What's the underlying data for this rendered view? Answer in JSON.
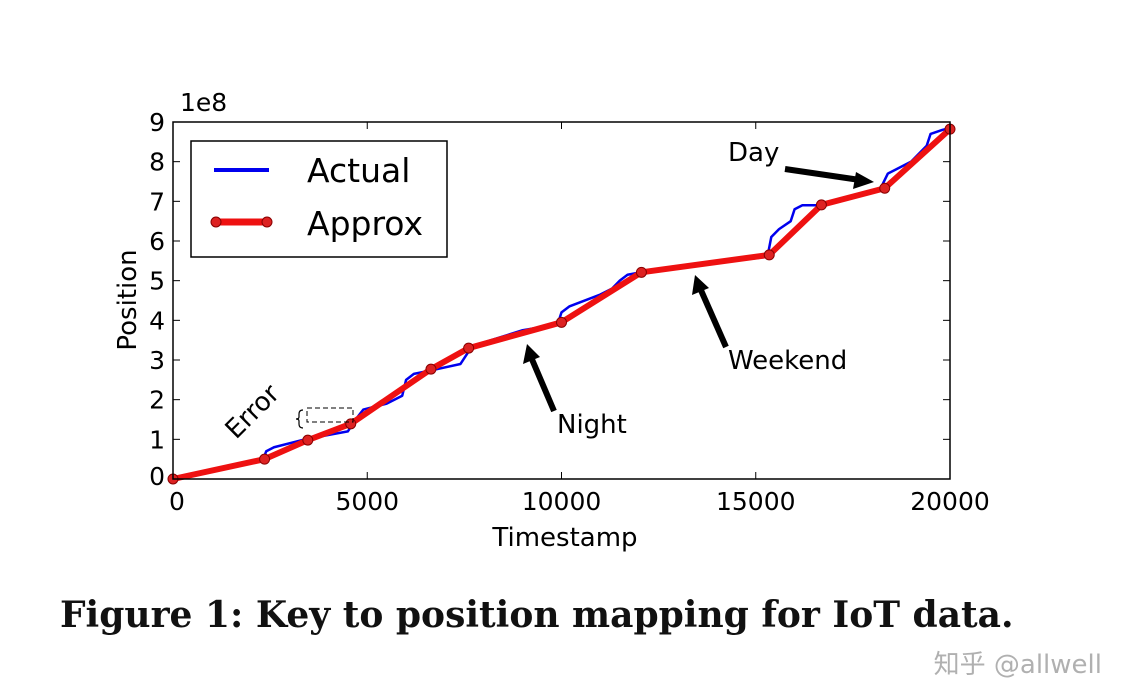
{
  "chart_data": {
    "type": "line",
    "title": "",
    "xlabel": "Timestamp",
    "ylabel": "Position",
    "y_scale_label": "1e8",
    "xlim": [
      0,
      20000
    ],
    "ylim": [
      0,
      9
    ],
    "x_ticks": [
      "0",
      "5000",
      "10000",
      "15000",
      "20000"
    ],
    "x_tick_values": [
      0,
      5000,
      10000,
      15000,
      20000
    ],
    "y_ticks": [
      "0",
      "1",
      "2",
      "3",
      "4",
      "5",
      "6",
      "7",
      "8",
      "9"
    ],
    "y_tick_values": [
      0,
      1,
      2,
      3,
      4,
      5,
      6,
      7,
      8,
      9
    ],
    "grid": false,
    "legend": {
      "placement": "top-left",
      "entries": [
        "Actual",
        "Approx"
      ]
    },
    "colors": {
      "actual": "#0000ee",
      "approx": "#ee1111",
      "marker": "#dd2222"
    },
    "series": [
      {
        "name": "Actual",
        "x": [
          0,
          2300,
          2400,
          2600,
          3400,
          4500,
          4700,
          4900,
          5500,
          5900,
          6000,
          6200,
          6700,
          7400,
          7600,
          7700,
          9000,
          9900,
          10000,
          10200,
          11000,
          11300,
          11500,
          11700,
          12100,
          15300,
          15400,
          15600,
          15900,
          16000,
          16200,
          16700,
          18200,
          18400,
          18600,
          19000,
          19400,
          19500,
          19800,
          20000
        ],
        "y": [
          0,
          0.45,
          0.7,
          0.8,
          1.0,
          1.2,
          1.5,
          1.75,
          1.9,
          2.1,
          2.5,
          2.65,
          2.75,
          2.9,
          3.2,
          3.35,
          3.75,
          3.9,
          4.2,
          4.35,
          4.65,
          4.8,
          5.0,
          5.15,
          5.22,
          5.6,
          6.1,
          6.3,
          6.5,
          6.8,
          6.9,
          6.9,
          7.3,
          7.7,
          7.8,
          8.0,
          8.4,
          8.7,
          8.8,
          8.85
        ]
      },
      {
        "name": "Approx",
        "x": [
          0,
          2357,
          3470,
          4575,
          6640,
          7610,
          10000,
          12057,
          15347,
          16690,
          18320,
          20000
        ],
        "y": [
          0,
          0.5,
          0.98,
          1.39,
          2.77,
          3.3,
          3.95,
          5.21,
          5.65,
          6.91,
          7.33,
          8.82
        ]
      }
    ],
    "annotations": [
      {
        "text": "Day",
        "target": [
          18300,
          7.4
        ]
      },
      {
        "text": "Weekend",
        "target": [
          13250,
          5.1
        ]
      },
      {
        "text": "Night",
        "target": [
          9100,
          3.4
        ]
      },
      {
        "text": "Error",
        "target": [
          3500,
          1.5
        ]
      }
    ]
  },
  "caption": "Figure 1: Key to position mapping for IoT data.",
  "watermark": "知乎 @allwell"
}
